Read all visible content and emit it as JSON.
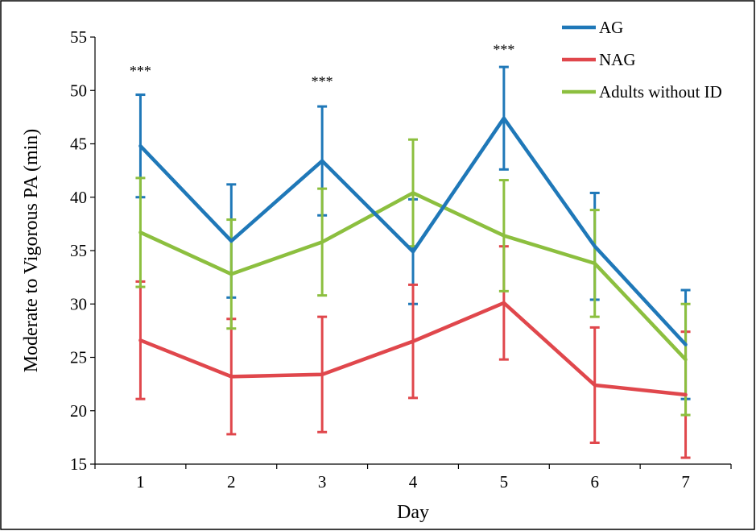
{
  "chart_data": {
    "type": "line",
    "title": "",
    "xlabel": "Day",
    "ylabel": "Moderate to Vigorous PA (min)",
    "categories": [
      "1",
      "2",
      "3",
      "4",
      "5",
      "6",
      "7"
    ],
    "ylim": [
      15,
      55
    ],
    "yticks": [
      15,
      20,
      25,
      30,
      35,
      40,
      45,
      50,
      55
    ],
    "grid": false,
    "legend_position": "top-right",
    "series": [
      {
        "name": "AG",
        "color": "#1f78b8",
        "values": [
          44.8,
          35.9,
          43.4,
          34.9,
          47.4,
          35.4,
          26.2
        ],
        "error": [
          4.8,
          5.3,
          5.1,
          4.9,
          4.8,
          5.0,
          5.1
        ]
      },
      {
        "name": "NAG",
        "color": "#e0474c",
        "values": [
          26.6,
          23.2,
          23.4,
          26.5,
          30.1,
          22.4,
          21.5
        ],
        "error": [
          5.5,
          5.4,
          5.4,
          5.3,
          5.3,
          5.4,
          5.9
        ]
      },
      {
        "name": "Adults without ID",
        "color": "#8cbf3f",
        "values": [
          36.7,
          32.8,
          35.8,
          40.4,
          36.4,
          33.8,
          24.8
        ],
        "error": [
          5.1,
          5.1,
          5.0,
          5.0,
          5.2,
          5.0,
          5.2
        ]
      }
    ],
    "annotations": [
      {
        "category": "1",
        "text": "***",
        "y": 52.0
      },
      {
        "category": "3",
        "text": "***",
        "y": 51.0
      },
      {
        "category": "5",
        "text": "***",
        "y": 54.0
      }
    ]
  }
}
